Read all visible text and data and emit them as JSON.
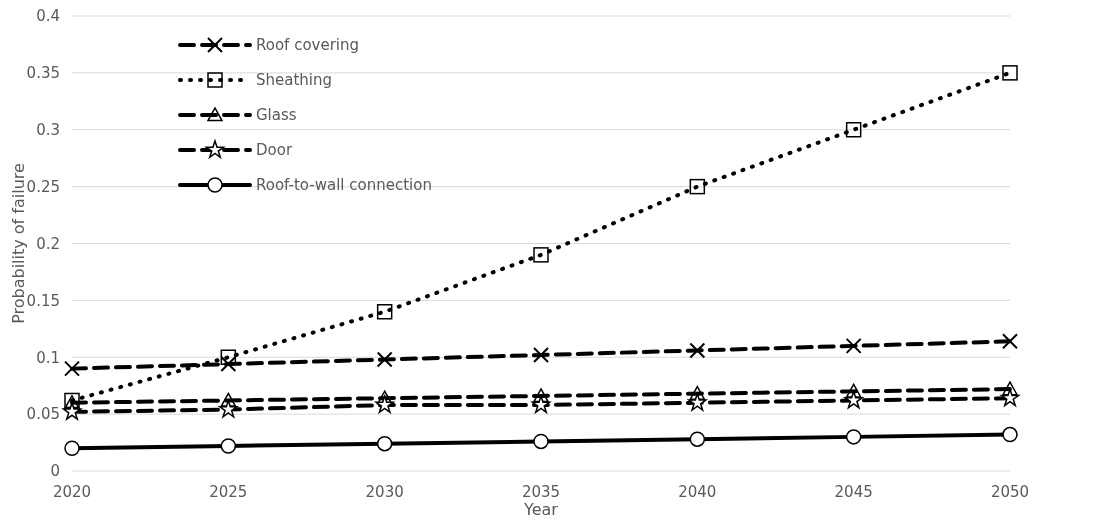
{
  "chart_data": {
    "type": "line",
    "xlabel": "Year",
    "ylabel": "Probability of failure",
    "x": [
      2020,
      2025,
      2030,
      2035,
      2040,
      2045,
      2050
    ],
    "xlim": [
      2020,
      2050
    ],
    "xticks": [
      2020,
      2025,
      2030,
      2035,
      2040,
      2045,
      2050
    ],
    "ylim": [
      0,
      0.4
    ],
    "yticks": [
      0,
      0.05,
      0.1,
      0.15,
      0.2,
      0.25,
      0.3,
      0.35,
      0.4
    ],
    "grid": "y",
    "legend": "top left",
    "series": [
      {
        "name": "Roof covering",
        "color": "#000000",
        "marker": "cross",
        "line_style": "dashed",
        "values": [
          0.09,
          0.094,
          0.098,
          0.102,
          0.106,
          0.11,
          0.114
        ]
      },
      {
        "name": "Sheathing",
        "color": "#000000",
        "marker": "square",
        "line_style": "dotted",
        "values": [
          0.062,
          0.1,
          0.14,
          0.19,
          0.25,
          0.3,
          0.35
        ]
      },
      {
        "name": "Glass",
        "color": "#000000",
        "marker": "triangle",
        "line_style": "dashed",
        "values": [
          0.06,
          0.062,
          0.064,
          0.066,
          0.068,
          0.07,
          0.072
        ]
      },
      {
        "name": "Door",
        "color": "#000000",
        "marker": "star",
        "line_style": "dashed",
        "values": [
          0.052,
          0.054,
          0.058,
          0.058,
          0.06,
          0.062,
          0.064
        ]
      },
      {
        "name": "Roof-to-wall connection",
        "color": "#000000",
        "marker": "circle",
        "line_style": "solid",
        "values": [
          0.02,
          0.022,
          0.024,
          0.026,
          0.028,
          0.03,
          0.032
        ]
      }
    ]
  }
}
